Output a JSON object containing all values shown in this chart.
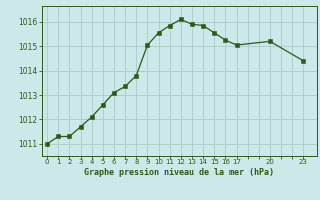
{
  "x": [
    0,
    1,
    2,
    3,
    4,
    5,
    6,
    7,
    8,
    9,
    10,
    11,
    12,
    13,
    14,
    15,
    16,
    17,
    20,
    23
  ],
  "y": [
    1011.0,
    1011.3,
    1011.3,
    1011.7,
    1012.1,
    1012.6,
    1013.1,
    1013.35,
    1013.8,
    1015.05,
    1015.55,
    1015.85,
    1016.1,
    1015.9,
    1015.85,
    1015.55,
    1015.25,
    1015.05,
    1015.2,
    1014.4
  ],
  "line_color": "#2d5a1b",
  "marker_color": "#2d5a1b",
  "bg_color": "#cce8e8",
  "grid_color": "#aacaca",
  "title": "Graphe pression niveau de la mer (hPa)",
  "title_color": "#2d5a1b",
  "ylim_min": 1010.5,
  "ylim_max": 1016.65,
  "xlim_min": -0.5,
  "xlim_max": 24.2,
  "yticks": [
    1011,
    1012,
    1013,
    1014,
    1015,
    1016
  ],
  "xtick_positions": [
    0,
    1,
    2,
    3,
    4,
    5,
    6,
    7,
    8,
    9,
    10,
    11,
    12,
    13,
    14,
    15,
    16,
    17,
    20,
    23
  ],
  "xtick_labels": [
    "0",
    "1",
    "2",
    "3",
    "4",
    "5",
    "6",
    "7",
    "8",
    "9",
    "10",
    "11",
    "12",
    "13",
    "14",
    "15",
    "16",
    "17",
    "20",
    "23"
  ]
}
